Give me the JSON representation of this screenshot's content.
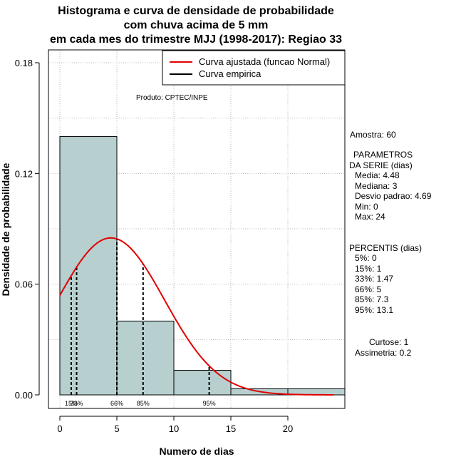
{
  "chart_data": {
    "type": "histogram",
    "title_lines": [
      "Histograma e curva de densidade de probabilidade",
      "com chuva acima de 5 mm",
      "em cada mes do trimestre MJJ (1998-2017): Regiao 33"
    ],
    "xlabel": "Numero de dias",
    "ylabel": "Densidade de probabilidade",
    "xlim": [
      -1,
      25
    ],
    "ylim": [
      0,
      0.18
    ],
    "x_ticks": [
      0,
      5,
      10,
      15,
      20
    ],
    "y_ticks": [
      0.0,
      0.06,
      0.12,
      0.18
    ],
    "y_tick_labels": [
      "0.00",
      "0.06",
      "0.12",
      "0.18"
    ],
    "bins": [
      {
        "start": 0,
        "end": 5,
        "density": 0.14
      },
      {
        "start": 5,
        "end": 10,
        "density": 0.04
      },
      {
        "start": 10,
        "end": 15,
        "density": 0.0133
      },
      {
        "start": 15,
        "end": 20,
        "density": 0.0033
      },
      {
        "start": 20,
        "end": 25,
        "density": 0.0033
      }
    ],
    "normal_fit": {
      "mean": 4.48,
      "sd": 4.69,
      "x_from": 0,
      "x_to": 24
    },
    "percentile_lines": [
      {
        "label": "15%",
        "x": 1
      },
      {
        "label": "33%",
        "x": 1.47
      },
      {
        "label": "66%",
        "x": 5
      },
      {
        "label": "85%",
        "x": 7.3
      },
      {
        "label": "95%",
        "x": 13.1
      }
    ],
    "legend": [
      {
        "label": "Curva ajustada (funcao Normal)",
        "color": "#e00000"
      },
      {
        "label": "Curva empirica",
        "color": "#000000"
      }
    ],
    "annotation": "Produto: CPTEC/INPE",
    "colors": {
      "bar_fill": "#b7cfcf",
      "curve": "#e00000",
      "grid": "#bbbbbb"
    }
  },
  "side_panel": {
    "amostra": "Amostra: 60",
    "params_lines": [
      "PARAMETROS",
      "DA SERIE (dias)"
    ],
    "stats": [
      "Media: 4.48",
      "Mediana: 3",
      "Desvio padrao: 4.69",
      "Min: 0",
      "Max: 24"
    ],
    "percentis_title": "PERCENTIS (dias)",
    "percentis": [
      "5%: 0",
      "15%: 1",
      "33%: 1.47",
      "66%: 5",
      "85%: 7.3",
      "95%: 13.1"
    ],
    "curtose": "Curtose: 1",
    "assimetria": "Assimetria: 0.2"
  }
}
